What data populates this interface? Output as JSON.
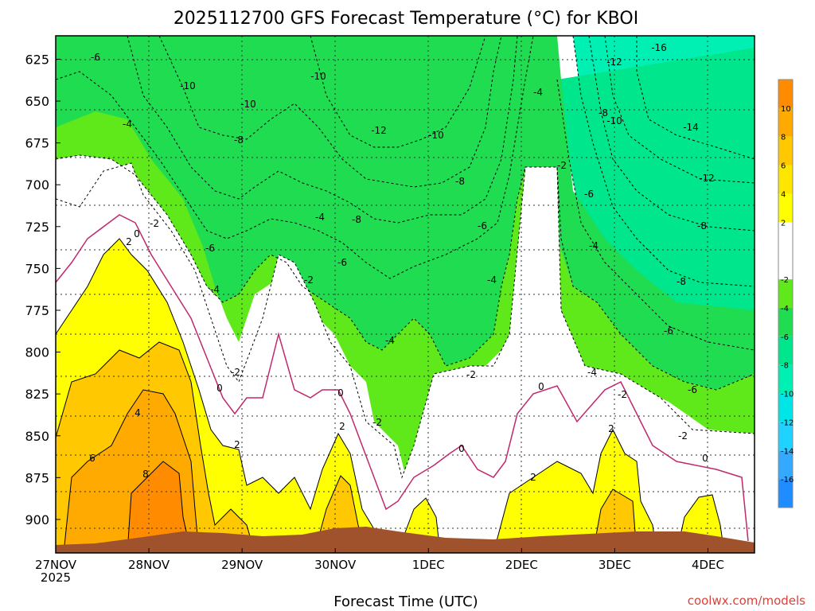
{
  "chart_data": {
    "type": "heatmap",
    "title": "2025112700 GFS Forecast Temperature (°C) for KBOI",
    "xlabel": "Forecast Time (UTC)",
    "ylabel": "",
    "credit": "coolwx.com/models",
    "x_ticks": [
      "27NOV\n2025",
      "28NOV",
      "29NOV",
      "30NOV",
      "1DEC",
      "2DEC",
      "3DEC",
      "4DEC"
    ],
    "y_ticks": [
      "625",
      "650",
      "675",
      "700",
      "725",
      "750",
      "775",
      "800",
      "825",
      "850",
      "875",
      "900"
    ],
    "y_range_hpa": [
      611,
      920
    ],
    "colorbar": {
      "bounds": [
        -18,
        -16,
        -14,
        -12,
        -10,
        -8,
        -6,
        -4,
        -2,
        2,
        4,
        6,
        8,
        10,
        12
      ],
      "labels": [
        "-16",
        "-14",
        "-12",
        "-10",
        "-8",
        "-6",
        "-4",
        "-2",
        "2",
        "4",
        "6",
        "8",
        "10"
      ],
      "colors": [
        "#1f8cff",
        "#33aaff",
        "#1fd2ff",
        "#00e6e6",
        "#00f0b4",
        "#00e68c",
        "#20dc50",
        "#5fe81a",
        "#ffffff",
        "#ffff00",
        "#ffe600",
        "#ffc800",
        "#ffaa00",
        "#ff8c00"
      ]
    },
    "contour_labels": [
      {
        "t": "-6"
      },
      {
        "t": "-16"
      },
      {
        "t": "-12"
      },
      {
        "t": "-10"
      },
      {
        "t": "-10"
      },
      {
        "t": "-10"
      },
      {
        "t": "-8"
      },
      {
        "t": "-8"
      },
      {
        "t": "-14"
      },
      {
        "t": "-12"
      },
      {
        "t": "-10"
      },
      {
        "t": "-4"
      },
      {
        "t": "-4"
      },
      {
        "t": "-12"
      },
      {
        "t": "-10"
      },
      {
        "t": "-8"
      },
      {
        "t": "-8"
      },
      {
        "t": "-2"
      },
      {
        "t": "-6"
      },
      {
        "t": "-6"
      },
      {
        "t": "-4"
      },
      {
        "t": "-8"
      },
      {
        "t": "-6"
      },
      {
        "t": "-4"
      },
      {
        "t": "0"
      },
      {
        "t": "-2"
      },
      {
        "t": "2"
      },
      {
        "t": "-6"
      },
      {
        "t": "-4"
      },
      {
        "t": "-2"
      },
      {
        "t": "-6"
      },
      {
        "t": "-4"
      },
      {
        "t": "-8"
      },
      {
        "t": "-4"
      },
      {
        "t": "-6"
      },
      {
        "t": "-2"
      },
      {
        "t": "-2"
      },
      {
        "t": "0"
      },
      {
        "t": "0"
      },
      {
        "t": "-2"
      },
      {
        "t": "0"
      },
      {
        "t": "-4"
      },
      {
        "t": "4"
      },
      {
        "t": "-2"
      },
      {
        "t": "2"
      },
      {
        "t": "-2"
      },
      {
        "t": "6"
      },
      {
        "t": "2"
      },
      {
        "t": "0"
      },
      {
        "t": "2"
      },
      {
        "t": "0"
      },
      {
        "t": "8"
      },
      {
        "t": "2"
      }
    ]
  }
}
